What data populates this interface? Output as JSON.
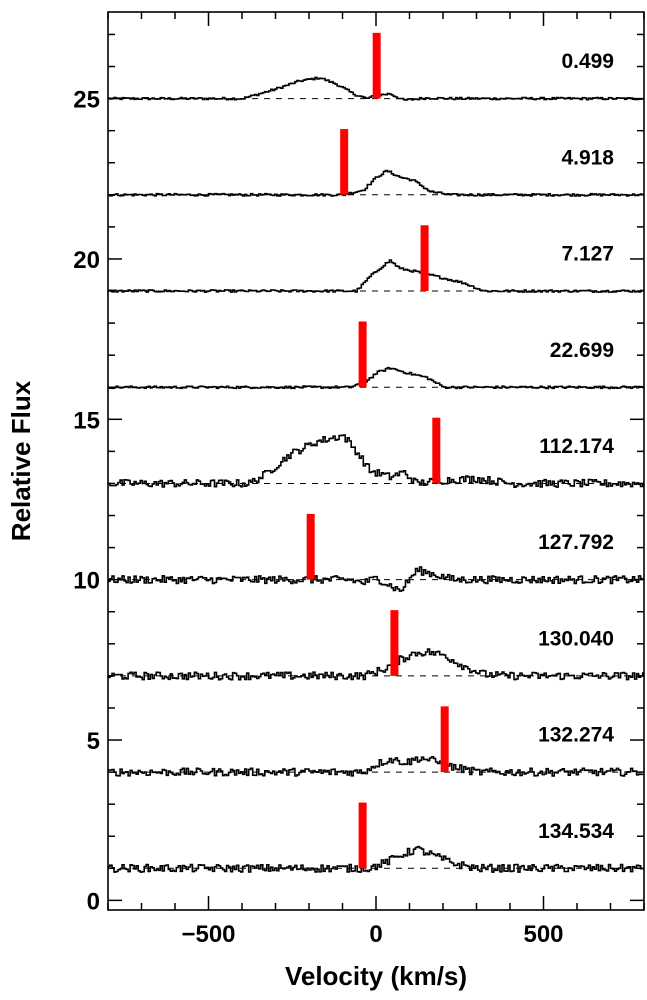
{
  "chart_data": {
    "type": "line",
    "xlabel": "Velocity (km/s)",
    "ylabel": "Relative Flux",
    "xlim": [
      -800,
      800
    ],
    "ylim": [
      -0.3,
      27.7
    ],
    "x_ticks": [
      -500,
      0,
      500
    ],
    "x_tick_labels": [
      "−500",
      "0",
      "500"
    ],
    "y_ticks": [
      0,
      5,
      10,
      15,
      20,
      25
    ],
    "y_tick_labels": [
      "0",
      "5",
      "10",
      "15",
      "20",
      "25"
    ],
    "grid": false,
    "colors": {
      "line": "#000000",
      "marker": "#ff0000",
      "baseline": "#000000"
    },
    "spectra": [
      {
        "label": "0.499",
        "offset": 25,
        "marker_velocity": 2,
        "noise": 0.035,
        "profile": [
          [
            -800,
            0
          ],
          [
            -400,
            0
          ],
          [
            -300,
            0.3
          ],
          [
            -230,
            0.55
          ],
          [
            -170,
            0.65
          ],
          [
            -120,
            0.45
          ],
          [
            -70,
            0.15
          ],
          [
            -30,
            0
          ],
          [
            0,
            0.1
          ],
          [
            40,
            0.15
          ],
          [
            80,
            -0.05
          ],
          [
            150,
            0.02
          ],
          [
            220,
            0
          ],
          [
            800,
            0
          ]
        ]
      },
      {
        "label": "4.918",
        "offset": 22,
        "marker_velocity": -95,
        "noise": 0.035,
        "profile": [
          [
            -800,
            0
          ],
          [
            -100,
            0
          ],
          [
            -40,
            0.15
          ],
          [
            0,
            0.55
          ],
          [
            30,
            0.75
          ],
          [
            70,
            0.55
          ],
          [
            110,
            0.45
          ],
          [
            160,
            0.1
          ],
          [
            220,
            0
          ],
          [
            800,
            0
          ]
        ]
      },
      {
        "label": "7.127",
        "offset": 19,
        "marker_velocity": 145,
        "noise": 0.035,
        "profile": [
          [
            -800,
            0
          ],
          [
            -60,
            0
          ],
          [
            -20,
            0.45
          ],
          [
            20,
            0.8
          ],
          [
            40,
            0.95
          ],
          [
            70,
            0.7
          ],
          [
            120,
            0.6
          ],
          [
            180,
            0.45
          ],
          [
            260,
            0.25
          ],
          [
            320,
            0
          ],
          [
            800,
            0
          ]
        ]
      },
      {
        "label": "22.699",
        "offset": 16,
        "marker_velocity": -40,
        "noise": 0.035,
        "profile": [
          [
            -800,
            0
          ],
          [
            -80,
            0
          ],
          [
            -30,
            0.2
          ],
          [
            0,
            0.45
          ],
          [
            40,
            0.6
          ],
          [
            90,
            0.45
          ],
          [
            150,
            0.3
          ],
          [
            200,
            0
          ],
          [
            800,
            0
          ]
        ]
      },
      {
        "label": "112.174",
        "offset": 13,
        "marker_velocity": 180,
        "noise": 0.12,
        "profile": [
          [
            -800,
            0
          ],
          [
            -380,
            0
          ],
          [
            -330,
            0.3
          ],
          [
            -260,
            0.9
          ],
          [
            -180,
            1.3
          ],
          [
            -100,
            1.5
          ],
          [
            -60,
            1.0
          ],
          [
            -20,
            0.4
          ],
          [
            40,
            0.2
          ],
          [
            80,
            0.35
          ],
          [
            120,
            0
          ],
          [
            200,
            0.1
          ],
          [
            300,
            0.15
          ],
          [
            400,
            0
          ],
          [
            800,
            0
          ]
        ]
      },
      {
        "label": "127.792",
        "offset": 10,
        "marker_velocity": -195,
        "noise": 0.12,
        "profile": [
          [
            -800,
            0
          ],
          [
            -80,
            0
          ],
          [
            -40,
            -0.1
          ],
          [
            0,
            0.05
          ],
          [
            70,
            -0.35
          ],
          [
            120,
            0.3
          ],
          [
            160,
            0.2
          ],
          [
            230,
            0
          ],
          [
            800,
            0
          ]
        ]
      },
      {
        "label": "130.040",
        "offset": 7,
        "marker_velocity": 55,
        "noise": 0.12,
        "profile": [
          [
            -800,
            0
          ],
          [
            -40,
            0
          ],
          [
            20,
            0.2
          ],
          [
            60,
            0.45
          ],
          [
            110,
            0.7
          ],
          [
            150,
            0.75
          ],
          [
            200,
            0.65
          ],
          [
            260,
            0.3
          ],
          [
            320,
            0.05
          ],
          [
            380,
            0
          ],
          [
            800,
            0
          ]
        ]
      },
      {
        "label": "132.274",
        "offset": 4,
        "marker_velocity": 205,
        "noise": 0.12,
        "profile": [
          [
            -800,
            0
          ],
          [
            -40,
            0
          ],
          [
            0,
            0.25
          ],
          [
            40,
            0.4
          ],
          [
            90,
            0.3
          ],
          [
            130,
            0.45
          ],
          [
            170,
            0.35
          ],
          [
            230,
            0.15
          ],
          [
            300,
            0
          ],
          [
            800,
            0
          ]
        ]
      },
      {
        "label": "134.534",
        "offset": 1,
        "marker_velocity": -40,
        "noise": 0.12,
        "profile": [
          [
            -800,
            0
          ],
          [
            -20,
            0
          ],
          [
            30,
            0.2
          ],
          [
            80,
            0.45
          ],
          [
            120,
            0.6
          ],
          [
            170,
            0.4
          ],
          [
            230,
            0.15
          ],
          [
            300,
            0
          ],
          [
            800,
            0
          ]
        ]
      }
    ]
  }
}
